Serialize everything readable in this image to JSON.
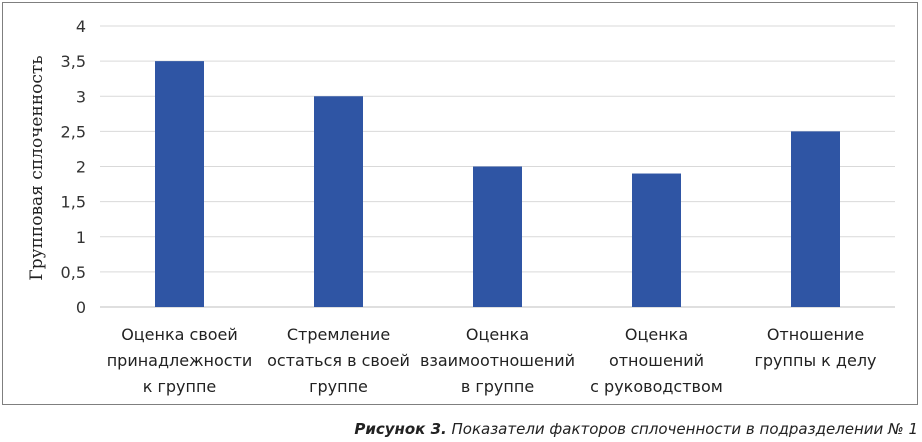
{
  "chart_data": {
    "type": "bar",
    "categories": [
      [
        "Оценка своей",
        "принадлежности",
        "к группе"
      ],
      [
        "Стремление",
        "остаться в своей",
        "группе"
      ],
      [
        "Оценка",
        "взаимоотношений",
        "в группе"
      ],
      [
        "Оценка",
        "отношений",
        "с руководством"
      ],
      [
        "Отношение",
        "группы к делу"
      ]
    ],
    "values": [
      3.5,
      3.0,
      2.0,
      1.9,
      2.5
    ],
    "ylabel": "Групповая сплоченность",
    "ylim": [
      0,
      4
    ],
    "yticks": [
      "0",
      "0,5",
      "1",
      "1,5",
      "2",
      "2,5",
      "3",
      "3,5",
      "4"
    ],
    "grid": true,
    "bar_color": "#2f55a4",
    "grid_color": "#d9d9d9"
  },
  "caption": {
    "label": "Рисунок 3.",
    "text": " Показатели факторов сплоченности в подразделении № 1"
  }
}
